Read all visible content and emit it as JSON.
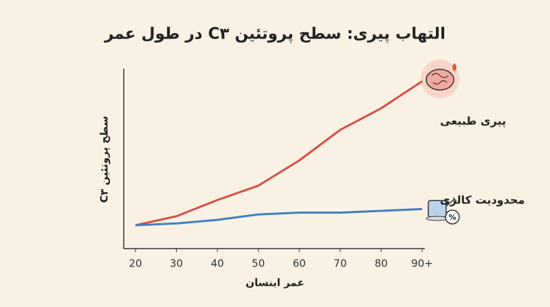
{
  "chart_data": {
    "type": "line",
    "title": "التهاب پیری: سطح پروتئین C۳ در طول عمر",
    "x_label": "عمر ابنسان",
    "y_label": "سطح پروتئین C۳",
    "categories": [
      "20",
      "30",
      "40",
      "50",
      "60",
      "70",
      "80",
      "90+"
    ],
    "series": [
      {
        "name": "پیری طبیعی",
        "color": "#d94c43",
        "values": [
          13,
          18,
          27,
          35,
          49,
          66,
          78,
          93
        ]
      },
      {
        "name": "محدودیت کالری",
        "color": "#3d7fc1",
        "values": [
          13,
          14,
          16,
          19,
          20,
          20,
          21,
          22
        ]
      }
    ],
    "ylim": [
      0,
      100
    ]
  }
}
